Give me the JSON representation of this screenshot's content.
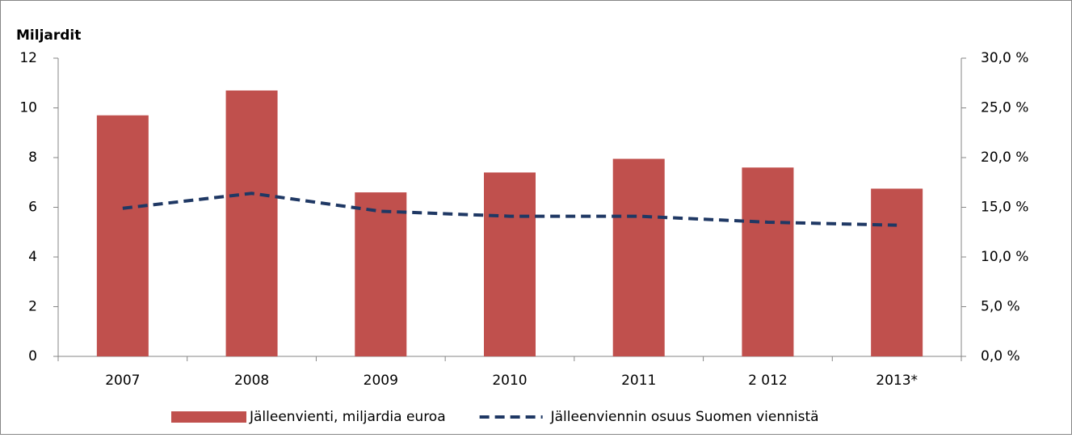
{
  "chart_data": {
    "type": "bar",
    "ylabel": "Miljardit",
    "categories": [
      "2007",
      "2008",
      "2009",
      "2010",
      "2011",
      "2 012",
      "2013*"
    ],
    "series": [
      {
        "name": "Jälleenvienti, miljardia euroa",
        "color": "#c0504d",
        "values": [
          9.7,
          10.7,
          6.6,
          7.4,
          7.95,
          7.6,
          6.75
        ]
      },
      {
        "name": "Jälleenviennin osuus Suomen viennistä",
        "color": "#1f3864",
        "type": "line",
        "dashed": true,
        "axis": "y2",
        "values": [
          14.9,
          16.4,
          14.6,
          14.1,
          14.1,
          13.5,
          13.2
        ]
      }
    ],
    "ylim": [
      0,
      12
    ],
    "yticks": [
      0,
      2,
      4,
      6,
      8,
      10,
      12
    ],
    "y2lim": [
      0,
      30
    ],
    "y2ticks": [
      {
        "value": 0,
        "label": "0,0 %"
      },
      {
        "value": 5,
        "label": "5,0 %"
      },
      {
        "value": 10,
        "label": "10,0 %"
      },
      {
        "value": 15,
        "label": "15,0 %"
      },
      {
        "value": 20,
        "label": "20,0 %"
      },
      {
        "value": 25,
        "label": "25,0 %"
      },
      {
        "value": 30,
        "label": "30,0 %"
      }
    ],
    "legend": "bottom"
  }
}
